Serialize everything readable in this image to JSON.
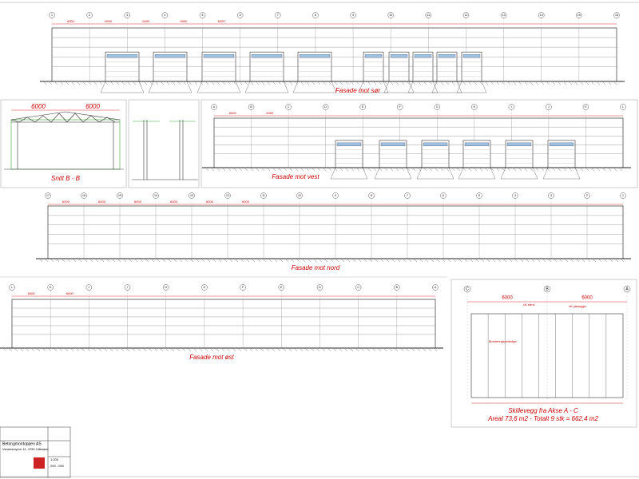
{
  "facades": [
    {
      "title": "Fasade mot sør",
      "axes": [
        "1",
        "2",
        "3",
        "4",
        "5",
        "6",
        "7",
        "8",
        "9",
        "10",
        "11",
        "12",
        "13",
        "14",
        "15",
        "16"
      ],
      "dimensions": [
        "6000",
        "6000",
        "6000",
        "6000",
        "6000"
      ]
    },
    {
      "title": "Fasade mot vest",
      "axes": [
        "A",
        "B",
        "C",
        "D",
        "E",
        "F",
        "G",
        "H",
        "I",
        "J",
        "K",
        "L"
      ],
      "dimensions": [
        "6000",
        "6000"
      ]
    },
    {
      "title": "Fasade mot nord",
      "axes": [
        "17",
        "16",
        "15",
        "14",
        "13",
        "12",
        "11",
        "10",
        "9",
        "8",
        "7",
        "6",
        "5",
        "4",
        "3",
        "2",
        "1"
      ],
      "dimensions": [
        "6000",
        "6000",
        "6000",
        "6000",
        "6000",
        "6000"
      ]
    },
    {
      "title": "Fasade mot øst",
      "axes": [
        "L",
        "K",
        "J",
        "I",
        "H",
        "G",
        "F",
        "E",
        "D",
        "C",
        "B",
        "A"
      ],
      "dimensions": [
        "6000",
        "6000"
      ]
    }
  ],
  "section": {
    "title": "Snitt B - B",
    "dimensions": [
      "6000",
      "6000"
    ]
  },
  "partition": {
    "title": "Skillevegg fra Akse A - C",
    "subtitle": "Areal 73,6 m2 - Totalt 9 stk = 662,4 m2",
    "axes": [
      "C",
      "B",
      "A"
    ],
    "dimensions": [
      "6000",
      "6000"
    ],
    "notes": [
      "UK stend",
      "HK planlegger",
      "Monteringsveiledge"
    ]
  },
  "title_block": {
    "company": "Betongmontoppen AS",
    "address": "Vennesmyrvn 11, 4790 Lillesand",
    "scale": "1:200",
    "number": "200 - 000"
  }
}
